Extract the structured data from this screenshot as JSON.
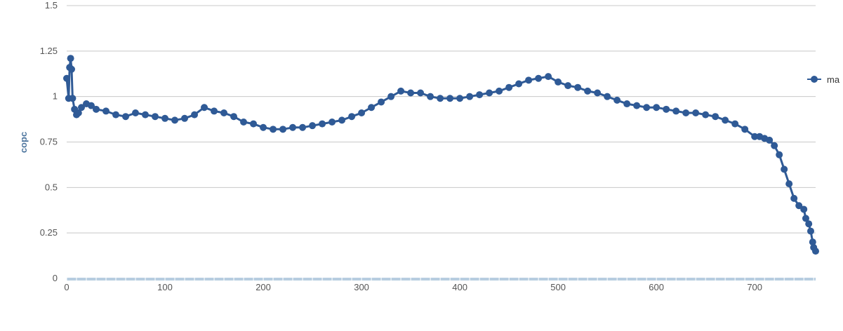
{
  "chart_data": {
    "type": "line",
    "title": "",
    "xlabel": "",
    "ylabel": "copc",
    "xlim": [
      0,
      762
    ],
    "ylim": [
      0,
      1.5
    ],
    "x_ticks": [
      0,
      100,
      200,
      300,
      400,
      500,
      600,
      700
    ],
    "x_tick_labels": [
      "0",
      "100",
      "200",
      "300",
      "400",
      "500",
      "600",
      "700"
    ],
    "y_ticks": [
      0,
      0.25,
      0.5,
      0.75,
      1,
      1.25,
      1.5
    ],
    "y_tick_labels": [
      "0",
      "0.25",
      "0.5",
      "0.75",
      "1",
      "1.25",
      "1.5"
    ],
    "grid": true,
    "legend_position": "right",
    "colors": {
      "series": "#2f5a96",
      "grid": "#c8c8c8",
      "axis": "#b7cde0",
      "label": "#4d759e"
    },
    "series": [
      {
        "name": "ma",
        "x": [
          0,
          2,
          3,
          4,
          5,
          6,
          8,
          10,
          12,
          15,
          20,
          25,
          30,
          40,
          50,
          60,
          70,
          80,
          90,
          100,
          110,
          120,
          130,
          140,
          150,
          160,
          170,
          180,
          190,
          200,
          210,
          220,
          230,
          240,
          250,
          260,
          270,
          280,
          290,
          300,
          310,
          320,
          330,
          340,
          350,
          360,
          370,
          380,
          390,
          400,
          410,
          420,
          430,
          440,
          450,
          460,
          470,
          480,
          490,
          500,
          510,
          520,
          530,
          540,
          550,
          560,
          570,
          580,
          590,
          600,
          610,
          620,
          630,
          640,
          650,
          660,
          670,
          680,
          690,
          700,
          705,
          710,
          715,
          720,
          725,
          730,
          735,
          740,
          745,
          750,
          752,
          755,
          757,
          759,
          760,
          762
        ],
        "values": [
          1.1,
          0.99,
          1.16,
          1.21,
          1.15,
          0.99,
          0.93,
          0.9,
          0.91,
          0.94,
          0.96,
          0.95,
          0.93,
          0.92,
          0.9,
          0.89,
          0.91,
          0.9,
          0.89,
          0.88,
          0.87,
          0.88,
          0.9,
          0.94,
          0.92,
          0.91,
          0.89,
          0.86,
          0.85,
          0.83,
          0.82,
          0.82,
          0.83,
          0.83,
          0.84,
          0.85,
          0.86,
          0.87,
          0.89,
          0.91,
          0.94,
          0.97,
          1.0,
          1.03,
          1.02,
          1.02,
          1.0,
          0.99,
          0.99,
          0.99,
          1.0,
          1.01,
          1.02,
          1.03,
          1.05,
          1.07,
          1.09,
          1.1,
          1.11,
          1.08,
          1.06,
          1.05,
          1.03,
          1.02,
          1.0,
          0.98,
          0.96,
          0.95,
          0.94,
          0.94,
          0.93,
          0.92,
          0.91,
          0.91,
          0.9,
          0.89,
          0.87,
          0.85,
          0.82,
          0.78,
          0.78,
          0.77,
          0.76,
          0.73,
          0.68,
          0.6,
          0.52,
          0.44,
          0.4,
          0.38,
          0.33,
          0.3,
          0.26,
          0.2,
          0.17,
          0.15
        ]
      }
    ]
  }
}
